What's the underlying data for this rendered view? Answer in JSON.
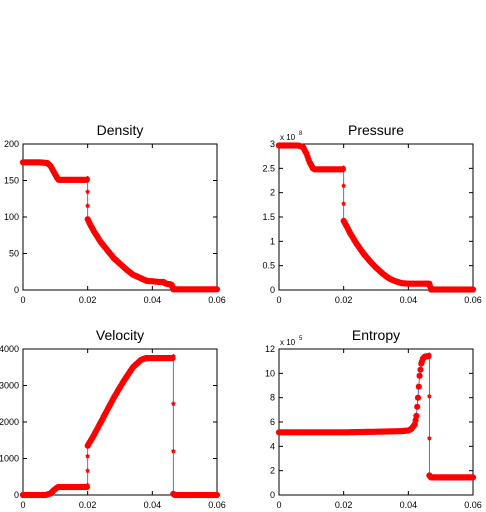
{
  "chart_data": [
    {
      "type": "line",
      "title": "Density",
      "xlim": [
        0,
        0.06
      ],
      "ylim": [
        0,
        200
      ],
      "xticks": [
        "0",
        "0.02",
        "0.04",
        "0.06"
      ],
      "yticks": [
        "0",
        "50",
        "100",
        "150",
        "200"
      ],
      "exponent": "",
      "series": [
        {
          "values_x": [
            0,
            0.005,
            0.0075,
            0.0085,
            0.0095,
            0.0105,
            0.011,
            0.012,
            0.014,
            0.016,
            0.018,
            0.0195,
            0.02,
            0.02,
            0.021,
            0.022,
            0.024,
            0.026,
            0.028,
            0.03,
            0.032,
            0.034,
            0.036,
            0.038,
            0.039,
            0.04,
            0.042,
            0.0435,
            0.044,
            0.045,
            0.0455,
            0.046,
            0.0465,
            0.047,
            0.05,
            0.055,
            0.06
          ],
          "values_y": [
            175,
            175,
            174,
            170,
            162,
            154,
            151,
            151,
            151,
            151,
            151,
            151,
            151,
            97,
            88,
            80,
            66,
            55,
            44,
            36,
            28,
            21,
            17,
            13,
            12,
            12,
            11,
            11,
            9,
            8,
            8,
            7,
            1,
            1,
            1,
            1,
            1
          ]
        }
      ]
    },
    {
      "type": "line",
      "title": "Pressure",
      "xlim": [
        0,
        0.06
      ],
      "ylim": [
        0,
        3
      ],
      "xticks": [
        "0",
        "0.02",
        "0.04",
        "0.06"
      ],
      "yticks": [
        "0",
        "0.5",
        "1",
        "1.5",
        "2",
        "2.5",
        "3"
      ],
      "exponent": "8",
      "series": [
        {
          "values_x": [
            0,
            0.006,
            0.0075,
            0.0085,
            0.0095,
            0.0105,
            0.011,
            0.012,
            0.014,
            0.016,
            0.018,
            0.0195,
            0.02,
            0.02,
            0.021,
            0.022,
            0.024,
            0.026,
            0.028,
            0.03,
            0.032,
            0.034,
            0.036,
            0.038,
            0.04,
            0.042,
            0.044,
            0.045,
            0.0465,
            0.047,
            0.05,
            0.055,
            0.06
          ],
          "values_y": [
            2.97,
            2.97,
            2.93,
            2.8,
            2.62,
            2.5,
            2.48,
            2.48,
            2.48,
            2.48,
            2.48,
            2.48,
            2.48,
            1.42,
            1.3,
            1.17,
            0.95,
            0.76,
            0.6,
            0.46,
            0.34,
            0.24,
            0.18,
            0.14,
            0.13,
            0.13,
            0.13,
            0.13,
            0.13,
            0.01,
            0.01,
            0.01,
            0.01
          ]
        }
      ]
    },
    {
      "type": "line",
      "title": "Velocity",
      "xlim": [
        0,
        0.06
      ],
      "ylim": [
        0,
        4000
      ],
      "xticks": [
        "0",
        "0.02",
        "0.04",
        "0.06"
      ],
      "yticks": [
        "0",
        "1000",
        "2000",
        "3000",
        "4000"
      ],
      "exponent": "",
      "series": [
        {
          "values_x": [
            0,
            0.007,
            0.0085,
            0.0095,
            0.0105,
            0.011,
            0.014,
            0.016,
            0.018,
            0.0195,
            0.02,
            0.02,
            0.022,
            0.025,
            0.028,
            0.031,
            0.034,
            0.0365,
            0.038,
            0.04,
            0.042,
            0.044,
            0.046,
            0.0465,
            0.0465,
            0.047,
            0.05,
            0.055,
            0.06
          ],
          "values_y": [
            0,
            0,
            40,
            130,
            200,
            220,
            220,
            220,
            220,
            220,
            220,
            1350,
            1650,
            2150,
            2650,
            3100,
            3500,
            3700,
            3750,
            3750,
            3750,
            3750,
            3750,
            3750,
            30,
            0,
            0,
            0,
            0
          ]
        }
      ]
    },
    {
      "type": "line",
      "title": "Entropy",
      "xlim": [
        0,
        0.06
      ],
      "ylim": [
        0,
        12
      ],
      "xticks": [
        "0",
        "0.02",
        "0.04",
        "0.06"
      ],
      "yticks": [
        "0",
        "2",
        "4",
        "6",
        "8",
        "10",
        "12"
      ],
      "exponent": "5",
      "series": [
        {
          "values_x": [
            0,
            0.01,
            0.02,
            0.03,
            0.038,
            0.04,
            0.041,
            0.042,
            0.0425,
            0.043,
            0.0435,
            0.044,
            0.0445,
            0.045,
            0.0455,
            0.046,
            0.0465,
            0.0465,
            0.047,
            0.05,
            0.055,
            0.06
          ],
          "values_y": [
            5.15,
            5.15,
            5.15,
            5.2,
            5.25,
            5.3,
            5.45,
            5.8,
            6.5,
            8.0,
            9.8,
            10.8,
            11.2,
            11.35,
            11.4,
            11.4,
            11.4,
            1.6,
            1.45,
            1.45,
            1.45,
            1.45
          ]
        }
      ]
    }
  ]
}
